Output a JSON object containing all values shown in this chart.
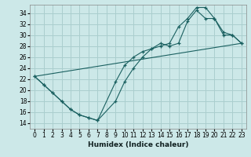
{
  "xlabel": "Humidex (Indice chaleur)",
  "bg_color": "#cce8e8",
  "grid_color": "#aacece",
  "line_color": "#1a6060",
  "xlim": [
    -0.5,
    23.5
  ],
  "ylim": [
    13,
    35.5
  ],
  "yticks": [
    14,
    16,
    18,
    20,
    22,
    24,
    26,
    28,
    30,
    32,
    34
  ],
  "xticks": [
    0,
    1,
    2,
    3,
    4,
    5,
    6,
    7,
    8,
    9,
    10,
    11,
    12,
    13,
    14,
    15,
    16,
    17,
    18,
    19,
    20,
    21,
    22,
    23
  ],
  "line1_x": [
    0,
    1,
    2,
    3,
    4,
    5,
    6,
    7,
    9,
    10,
    11,
    12,
    13,
    14,
    15,
    16,
    17,
    18,
    19,
    20,
    21,
    22,
    23
  ],
  "line1_y": [
    22.5,
    21.0,
    19.5,
    18.0,
    16.5,
    15.5,
    15.0,
    14.5,
    21.5,
    24.5,
    26.0,
    27.0,
    27.5,
    28.5,
    28.0,
    28.5,
    32.5,
    34.5,
    33.0,
    33.0,
    30.0,
    30.0,
    28.5
  ],
  "line2_x": [
    0,
    1,
    2,
    3,
    4,
    5,
    6,
    7,
    9,
    10,
    11,
    12,
    13,
    14,
    15,
    16,
    17,
    18,
    19,
    20,
    21,
    22,
    23
  ],
  "line2_y": [
    22.5,
    21.0,
    19.5,
    18.0,
    16.5,
    15.5,
    15.0,
    14.5,
    18.0,
    21.5,
    24.0,
    26.0,
    27.5,
    28.0,
    28.5,
    31.5,
    33.0,
    35.0,
    35.0,
    33.0,
    30.5,
    30.0,
    28.5
  ],
  "line3_x": [
    0,
    23
  ],
  "line3_y": [
    22.5,
    28.5
  ]
}
